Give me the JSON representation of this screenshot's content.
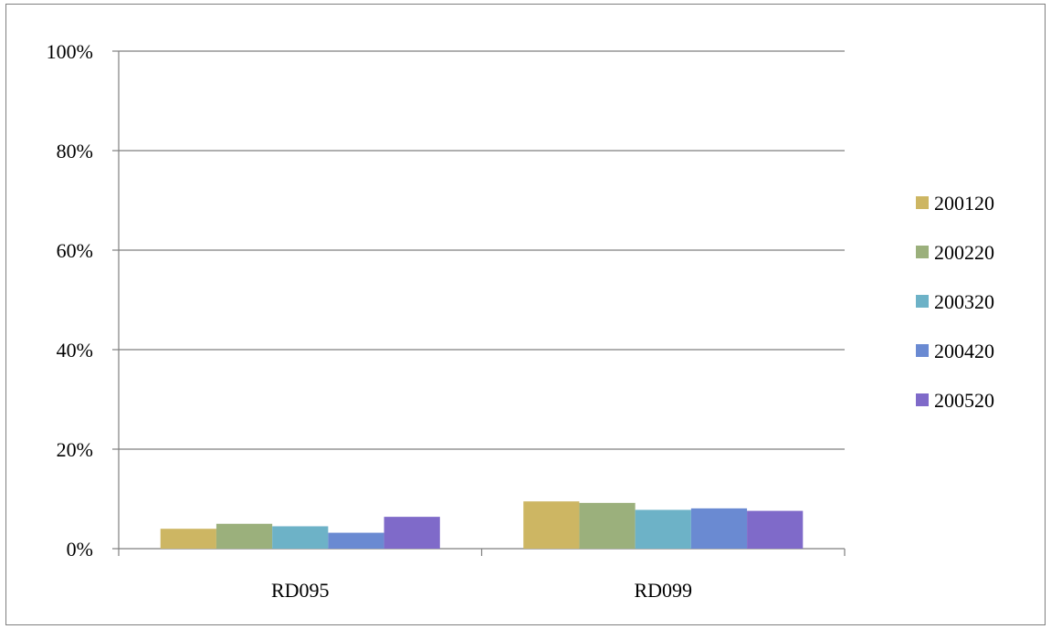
{
  "chart_data": {
    "type": "bar",
    "categories": [
      "RD095",
      "RD099"
    ],
    "series": [
      {
        "name": "200120",
        "color": "#cdb663",
        "values": [
          0.04,
          0.095
        ]
      },
      {
        "name": "200220",
        "color": "#9bb07c",
        "values": [
          0.05,
          0.092
        ]
      },
      {
        "name": "200320",
        "color": "#6db2c7",
        "values": [
          0.045,
          0.078
        ]
      },
      {
        "name": "200420",
        "color": "#6a8ad2",
        "values": [
          0.032,
          0.081
        ]
      },
      {
        "name": "200520",
        "color": "#7f6ac9",
        "values": [
          0.064,
          0.076
        ]
      }
    ],
    "ylim": [
      0,
      1
    ],
    "yticks": [
      0,
      0.2,
      0.4,
      0.6,
      0.8,
      1.0
    ],
    "ytick_labels": [
      "0%",
      "20%",
      "40%",
      "60%",
      "80%",
      "100%"
    ],
    "grid": true,
    "legend_position": "right"
  }
}
